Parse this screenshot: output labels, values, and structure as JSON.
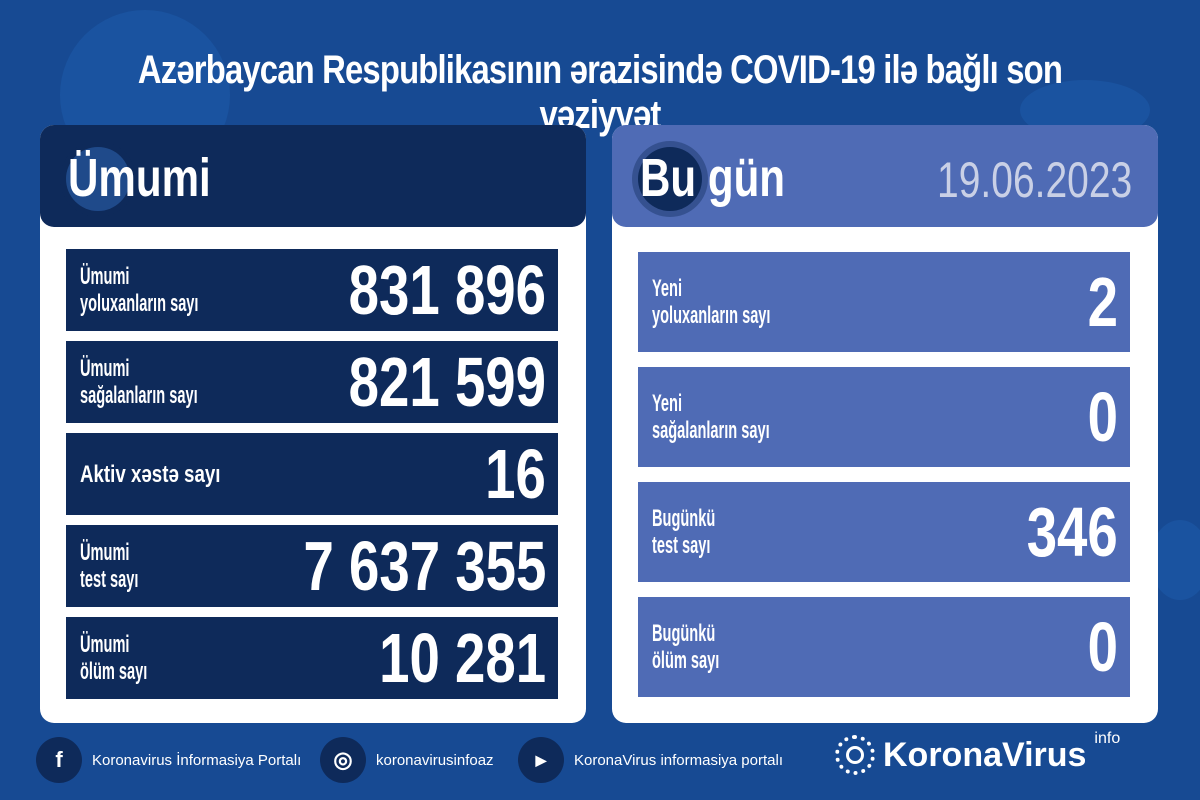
{
  "title": "Azərbaycan Respublikasının ərazisində COVID-19 ilə bağlı son vəziyyət",
  "total": {
    "header": "Ümumi",
    "rows": [
      {
        "label1": "Ümumi",
        "label2": "yoluxanların sayı",
        "value": "831 896"
      },
      {
        "label1": "Ümumi",
        "label2": "sağalanların sayı",
        "value": "821 599"
      },
      {
        "label1": "Aktiv xəstə sayı",
        "label2": "",
        "value": "16"
      },
      {
        "label1": "Ümumi",
        "label2": "test sayı",
        "value": "7 637 355"
      },
      {
        "label1": "Ümumi",
        "label2": "ölüm sayı",
        "value": "10 281"
      }
    ]
  },
  "today": {
    "header": "Bu gün",
    "date": "19.06.2023",
    "rows": [
      {
        "label1": "Yeni",
        "label2": "yoluxanların sayı",
        "value": "2"
      },
      {
        "label1": "Yeni",
        "label2": "sağalanların sayı",
        "value": "0"
      },
      {
        "label1": "Bugünkü",
        "label2": "test sayı",
        "value": "346"
      },
      {
        "label1": "Bugünkü",
        "label2": "ölüm sayı",
        "value": "0"
      }
    ]
  },
  "footer": {
    "facebook": "Koronavirus İnformasiya Portalı",
    "instagram": "koronavirusinfoaz",
    "youtube": "KoronaVirus informasiya portalı"
  },
  "brand": {
    "name": "KoronaVirus",
    "suffix": "info"
  },
  "colors": {
    "background": "#174a93",
    "dark_row": "#0e2a5a",
    "light_row": "#4f6bb5"
  }
}
